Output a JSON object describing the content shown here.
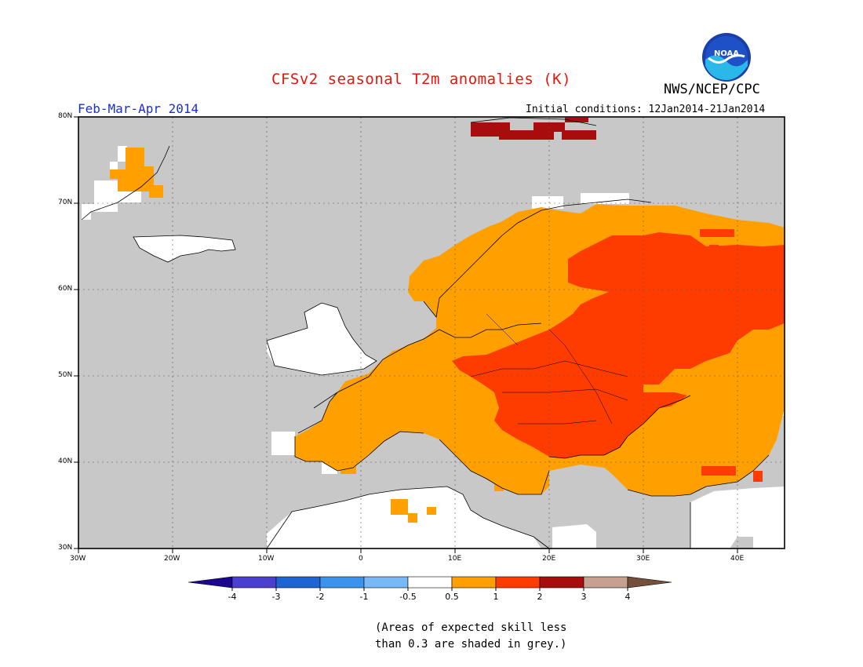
{
  "title": "CFSv2 seasonal T2m anomalies (K)",
  "agency": "NWS/NCEP/CPC",
  "logo_text": "NOAA",
  "season": "Feb-Mar-Apr 2014",
  "initial_conditions": "Initial conditions: 12Jan2014-21Jan2014",
  "note_line1": "(Areas of expected skill less",
  "note_line2": "than 0.3 are shaded in grey.)",
  "map": {
    "lon_range": [
      -30,
      45
    ],
    "lat_range": [
      30,
      80
    ],
    "lat_labels": [
      "30N",
      "40N",
      "50N",
      "60N",
      "70N",
      "80N"
    ],
    "lon_labels": [
      "30W",
      "20W",
      "10W",
      "0",
      "10E",
      "20E",
      "30E",
      "40E"
    ],
    "background_grey": "#c8c8c8"
  },
  "legend": {
    "tick_labels": [
      "-4",
      "-3",
      "-2",
      "-1",
      "-0.5",
      "0.5",
      "1",
      "2",
      "3",
      "4"
    ],
    "colors": [
      "#1c0690",
      "#4a3fd0",
      "#1e64d4",
      "#3c93ec",
      "#78b8f4",
      "#ffffff",
      "#ffa000",
      "#ff3c00",
      "#a80c0c",
      "#c8a090",
      "#73503c"
    ]
  }
}
